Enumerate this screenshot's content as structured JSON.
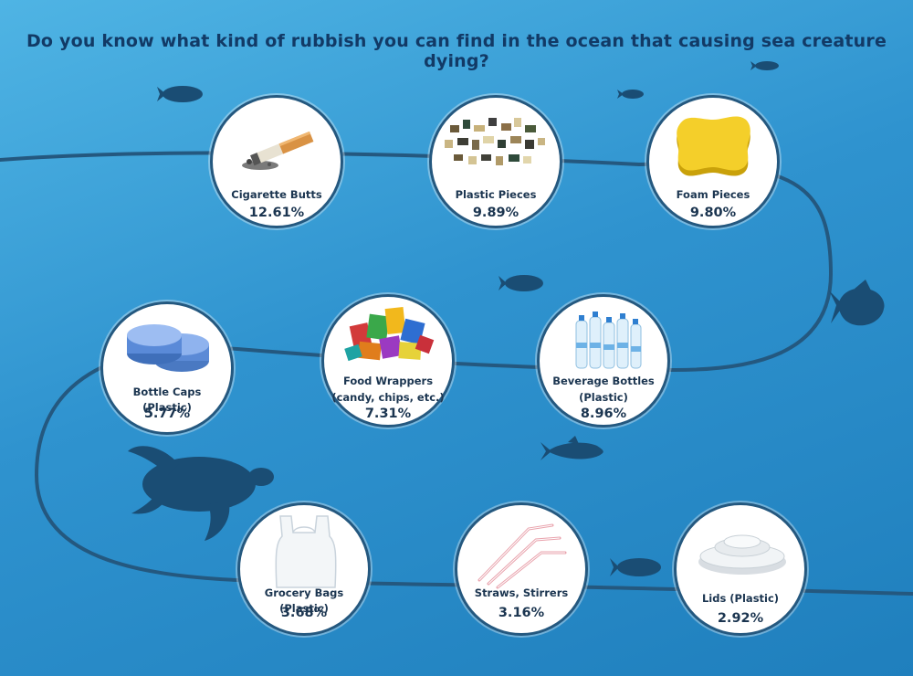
{
  "title": "Do you know what kind of rubbish you can find in the ocean that causing sea creature dying?",
  "colors": {
    "ocean_light": "#4fb4e4",
    "ocean_dark": "#1f7fbd",
    "path_line": "#24587f",
    "silhouette": "#1a4d74",
    "text_dark": "#1b3550"
  },
  "items": [
    {
      "label": "Cigarette Butts",
      "percent": "12.61%",
      "icon": "cigarette-icon"
    },
    {
      "label": "Plastic Pieces",
      "percent": "9.89%",
      "icon": "plastic-pieces-icon"
    },
    {
      "label": "Foam Pieces",
      "percent": "9.80%",
      "icon": "foam-sponge-icon"
    },
    {
      "label": "Bottle Caps (Plastic)",
      "percent": "5.77%",
      "icon": "bottle-caps-icon"
    },
    {
      "label": "Food Wrappers (candy, chips, etc.)",
      "label_line1": "Food Wrappers",
      "label_line2": "(candy, chips, etc.)",
      "percent": "7.31%",
      "icon": "food-wrappers-icon"
    },
    {
      "label": "Beverage Bottles (Plastic)",
      "label_line1": "Beverage Bottles",
      "label_line2": "(Plastic)",
      "percent": "8.96%",
      "icon": "water-bottles-icon"
    },
    {
      "label": "Grocery Bags (Plastic)",
      "percent": "3.68%",
      "icon": "grocery-bag-icon"
    },
    {
      "label": "Straws, Stirrers",
      "percent": "3.16%",
      "icon": "straws-icon"
    },
    {
      "label": "Lids (Plastic)",
      "percent": "2.92%",
      "icon": "cup-lid-icon"
    }
  ],
  "decorations": [
    "fish-icon",
    "turtle-icon",
    "reef-fish-icon",
    "tuna-icon"
  ]
}
